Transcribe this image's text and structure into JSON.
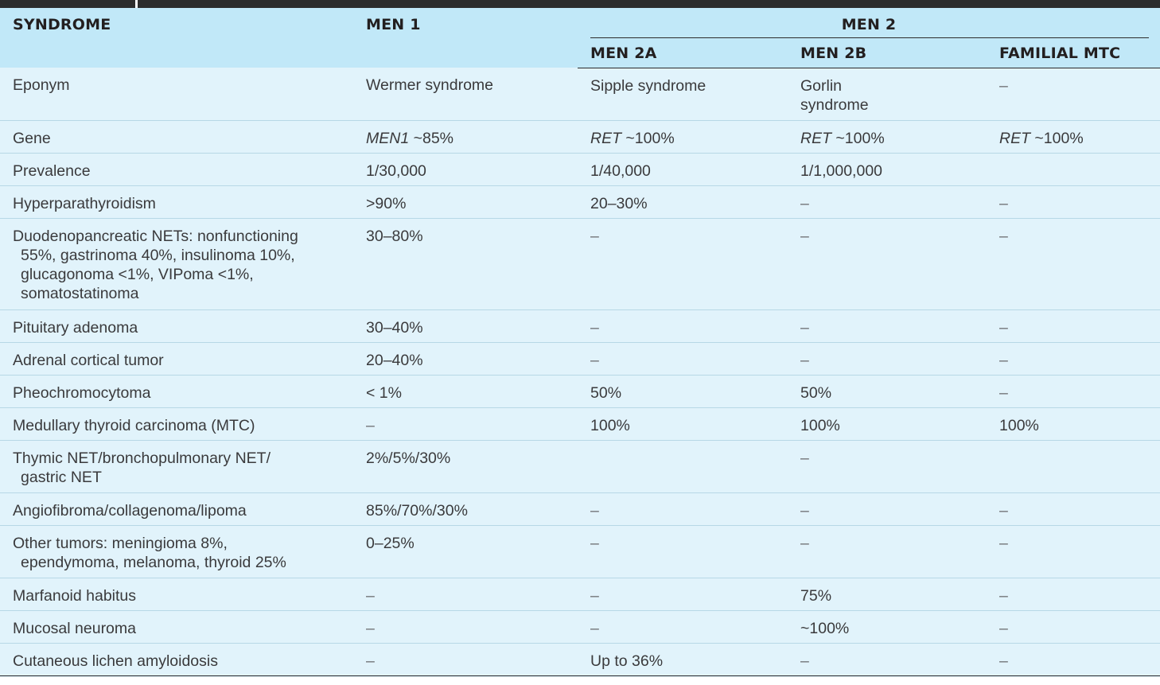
{
  "header": {
    "syndrome": "SYNDROME",
    "men1": "MEN 1",
    "men2": "MEN 2",
    "men2a": "MEN 2A",
    "men2b": "MEN 2B",
    "familial_mtc": "FAMILIAL MTC"
  },
  "rows": [
    {
      "label": [
        "Eponym"
      ],
      "men1": "Wermer syndrome",
      "men2a": "Sipple syndrome",
      "men2b": [
        "Gorlin",
        "syndrome"
      ],
      "fmtc": "–"
    },
    {
      "label": [
        "Gene"
      ],
      "men1_gene": "MEN1",
      "men1": " ~85%",
      "men2a_gene": "RET",
      "men2a": " ~100%",
      "men2b_gene": "RET",
      "men2b": " ~100%",
      "fmtc_gene": "RET",
      "fmtc": " ~100%"
    },
    {
      "label": [
        "Prevalence"
      ],
      "men1": "1/30,000",
      "men2a": "1/40,000",
      "men2b": "1/1,000,000",
      "fmtc": ""
    },
    {
      "label": [
        "Hyperparathyroidism"
      ],
      "men1": ">90%",
      "men2a": "20–30%",
      "men2b": "–",
      "fmtc": "–"
    },
    {
      "label": [
        "Duodenopancreatic NETs: nonfunctioning",
        "55%, gastrinoma 40%, insulinoma 10%,",
        "glucagonoma <1%, VIPoma <1%,",
        "somatostatinoma"
      ],
      "men1": "30–80%",
      "men2a": "–",
      "men2b": "–",
      "fmtc": "–"
    },
    {
      "label": [
        "Pituitary adenoma"
      ],
      "men1": "30–40%",
      "men2a": "–",
      "men2b": "–",
      "fmtc": "–"
    },
    {
      "label": [
        "Adrenal cortical tumor"
      ],
      "men1": "20–40%",
      "men2a": "–",
      "men2b": "–",
      "fmtc": "–"
    },
    {
      "label": [
        "Pheochromocytoma"
      ],
      "men1": "< 1%",
      "men2a": "50%",
      "men2b": "50%",
      "fmtc": "–"
    },
    {
      "label": [
        "Medullary thyroid carcinoma (MTC)"
      ],
      "men1": "–",
      "men2a": "100%",
      "men2b": "100%",
      "fmtc": "100%"
    },
    {
      "label": [
        "Thymic NET/bronchopulmonary NET/",
        "gastric NET"
      ],
      "men1": "2%/5%/30%",
      "men2a": "",
      "men2b": "–",
      "fmtc": ""
    },
    {
      "label": [
        "Angiofibroma/collagenoma/lipoma"
      ],
      "men1": "85%/70%/30%",
      "men2a": "–",
      "men2b": "–",
      "fmtc": "–"
    },
    {
      "label": [
        "Other tumors: meningioma 8%,",
        "ependymoma, melanoma, thyroid 25%"
      ],
      "men1": "0–25%",
      "men2a": "–",
      "men2b": "–",
      "fmtc": "–"
    },
    {
      "label": [
        "Marfanoid habitus"
      ],
      "men1": "–",
      "men2a": "–",
      "men2b": "75%",
      "fmtc": "–"
    },
    {
      "label": [
        "Mucosal neuroma"
      ],
      "men1": "–",
      "men2a": "–",
      "men2b": "~100%",
      "fmtc": "–"
    },
    {
      "label": [
        "Cutaneous lichen amyloidosis"
      ],
      "men1": "–",
      "men2a": "Up to 36%",
      "men2b": "–",
      "fmtc": "–"
    }
  ]
}
